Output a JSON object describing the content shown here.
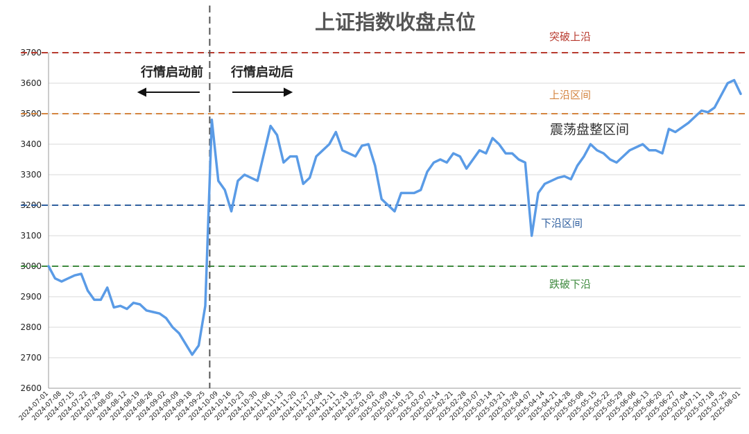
{
  "chart_data": {
    "type": "line",
    "title": "上证指数收盘点位",
    "categories": [
      "2024-07-01",
      null,
      "2024-07-08",
      null,
      "2024-07-15",
      null,
      "2024-07-22",
      null,
      "2024-07-29",
      null,
      "2024-08-05",
      null,
      "2024-08-12",
      null,
      "2024-08-19",
      null,
      "2024-08-26",
      null,
      "2024-09-02",
      null,
      "2024-09-09",
      null,
      "2024-09-18",
      null,
      "2024-09-25",
      null,
      "2024-10-09",
      null,
      "2024-10-16",
      null,
      "2024-10-23",
      null,
      "2024-10-30",
      null,
      "2024-11-06",
      null,
      "2024-11-13",
      null,
      "2024-11-20",
      null,
      "2024-11-27",
      null,
      "2024-12-04",
      null,
      "2024-12-11",
      null,
      "2024-12-18",
      null,
      "2024-12-25",
      null,
      "2025-01-02",
      null,
      "2025-01-09",
      null,
      "2025-01-16",
      null,
      "2025-01-23",
      null,
      "2025-02-07",
      null,
      "2025-02-14",
      null,
      "2025-02-21",
      null,
      "2025-02-28",
      null,
      "2025-03-07",
      null,
      "2025-03-14",
      null,
      "2025-03-21",
      null,
      "2025-03-28",
      null,
      "2025-04-07",
      null,
      "2025-04-14",
      null,
      "2025-04-21",
      null,
      "2025-04-28",
      null,
      "2025-05-08",
      null,
      "2025-05-15",
      null,
      "2025-05-22",
      null,
      "2025-05-29",
      null,
      "2025-06-06",
      null,
      "2025-06-13",
      null,
      "2025-06-20",
      null,
      "2025-06-27",
      null,
      "2025-07-04",
      null,
      "2025-07-11",
      null,
      "2025-07-18",
      null,
      "2025-07-25",
      null,
      "2025-08-01"
    ],
    "series": [
      {
        "color": "#5a9be6",
        "values": [
          3000,
          2960,
          2950,
          2960,
          2970,
          2975,
          2920,
          2890,
          2890,
          2930,
          2865,
          2870,
          2860,
          2880,
          2875,
          2855,
          2850,
          2845,
          2830,
          2800,
          2780,
          2745,
          2710,
          2740,
          2870,
          3480,
          3280,
          3250,
          3180,
          3280,
          3300,
          3290,
          3280,
          3370,
          3460,
          3430,
          3340,
          3360,
          3360,
          3270,
          3290,
          3360,
          3380,
          3400,
          3440,
          3380,
          3370,
          3360,
          3395,
          3400,
          3330,
          3220,
          3200,
          3180,
          3240,
          3240,
          3240,
          3250,
          3310,
          3340,
          3350,
          3340,
          3370,
          3360,
          3320,
          3350,
          3380,
          3370,
          3420,
          3400,
          3370,
          3370,
          3350,
          3340,
          3100,
          3240,
          3270,
          3280,
          3290,
          3295,
          3285,
          3330,
          3360,
          3400,
          3380,
          3370,
          3350,
          3340,
          3360,
          3380,
          3390,
          3400,
          3380,
          3380,
          3370,
          3450,
          3440,
          3455,
          3470,
          3490,
          3510,
          3505,
          3520,
          3560,
          3600,
          3610,
          3565
        ]
      }
    ],
    "ylim": [
      2600,
      3700
    ],
    "yticks": [
      2600,
      2700,
      2800,
      2900,
      3000,
      3100,
      3200,
      3300,
      3400,
      3500,
      3600,
      3700
    ],
    "grid": true,
    "reference_lines": [
      {
        "value": 3700,
        "label": "突破上沿",
        "color": "#b83a2e"
      },
      {
        "value": 3500,
        "label": "上沿区间",
        "color": "#d4843f"
      },
      {
        "value": 3200,
        "label": "下沿区间",
        "color": "#2f5f9f"
      },
      {
        "value": 3000,
        "label": "跌破下沿",
        "color": "#3e8a3e"
      }
    ],
    "annotations": {
      "range": "震荡盘整区间",
      "before": "行情启动前",
      "after": "行情启动后"
    }
  }
}
